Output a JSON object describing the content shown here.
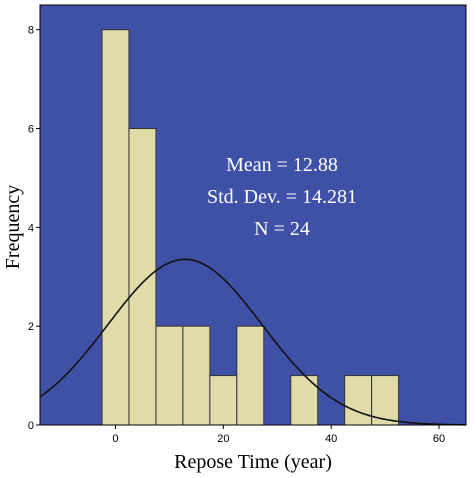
{
  "chart_data": {
    "type": "bar",
    "subtype": "histogram",
    "xlabel": "Repose Time (year)",
    "ylabel": "Frequency",
    "xlim": [
      -14,
      65
    ],
    "ylim": [
      0,
      8.5
    ],
    "x_ticks": [
      0,
      20,
      40,
      60
    ],
    "y_ticks": [
      0,
      2,
      4,
      6,
      8
    ],
    "bin_width": 5,
    "bins": [
      {
        "start": -2.5,
        "end": 2.5,
        "count": 8
      },
      {
        "start": 2.5,
        "end": 7.5,
        "count": 6
      },
      {
        "start": 7.5,
        "end": 12.5,
        "count": 2
      },
      {
        "start": 12.5,
        "end": 17.5,
        "count": 2
      },
      {
        "start": 17.5,
        "end": 22.5,
        "count": 1
      },
      {
        "start": 22.5,
        "end": 27.5,
        "count": 2
      },
      {
        "start": 27.5,
        "end": 32.5,
        "count": 0
      },
      {
        "start": 32.5,
        "end": 37.5,
        "count": 1
      },
      {
        "start": 37.5,
        "end": 42.5,
        "count": 0
      },
      {
        "start": 42.5,
        "end": 47.5,
        "count": 1
      },
      {
        "start": 47.5,
        "end": 52.5,
        "count": 1
      }
    ],
    "normal_curve": {
      "mean": 12.88,
      "sd": 14.281,
      "n": 24
    },
    "annotations": [
      "Mean = 12.88",
      "Std. Dev. = 14.281",
      "N = 24"
    ],
    "grid": false,
    "legend": "none",
    "colors": {
      "plot_background": "#3f51a6",
      "bar_fill": "#e0dba8",
      "bar_stroke": "#333333",
      "curve": "#111111",
      "annotation_text": "#ffffff"
    }
  }
}
